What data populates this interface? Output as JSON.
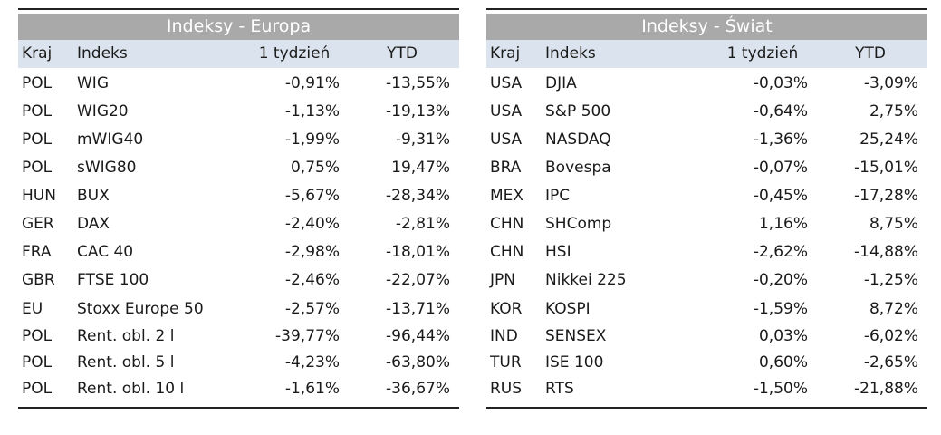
{
  "europa": {
    "title": "Indeksy - Europa",
    "headers": {
      "country": "Kraj",
      "index": "Indeks",
      "week": "1 tydzień",
      "ytd": "YTD"
    },
    "rows": [
      {
        "country": "POL",
        "index": "WIG",
        "week": "-0,91%",
        "ytd": "-13,55%"
      },
      {
        "country": "POL",
        "index": "WIG20",
        "week": "-1,13%",
        "ytd": "-19,13%"
      },
      {
        "country": "POL",
        "index": "mWIG40",
        "week": "-1,99%",
        "ytd": "-9,31%"
      },
      {
        "country": "POL",
        "index": "sWIG80",
        "week": "0,75%",
        "ytd": "19,47%"
      },
      {
        "country": "HUN",
        "index": "BUX",
        "week": "-5,67%",
        "ytd": "-28,34%"
      },
      {
        "country": "GER",
        "index": "DAX",
        "week": "-2,40%",
        "ytd": "-2,81%"
      },
      {
        "country": "FRA",
        "index": "CAC 40",
        "week": "-2,98%",
        "ytd": "-18,01%"
      },
      {
        "country": "GBR",
        "index": "FTSE 100",
        "week": "-2,46%",
        "ytd": "-22,07%"
      },
      {
        "country": "EU",
        "index": "Stoxx Europe 50",
        "week": "-2,57%",
        "ytd": "-13,71%"
      },
      {
        "country": "POL",
        "index": "Rent. obl. 2 l",
        "week": "-39,77%",
        "ytd": "-96,44%"
      },
      {
        "country": "POL",
        "index": "Rent. obl. 5 l",
        "week": "-4,23%",
        "ytd": "-63,80%"
      },
      {
        "country": "POL",
        "index": "Rent. obl. 10 l",
        "week": "-1,61%",
        "ytd": "-36,67%"
      }
    ]
  },
  "swiat": {
    "title": "Indeksy - Świat",
    "headers": {
      "country": "Kraj",
      "index": "Indeks",
      "week": "1 tydzień",
      "ytd": "YTD"
    },
    "rows": [
      {
        "country": "USA",
        "index": "DJIA",
        "week": "-0,03%",
        "ytd": "-3,09%"
      },
      {
        "country": "USA",
        "index": "S&P 500",
        "week": "-0,64%",
        "ytd": "2,75%"
      },
      {
        "country": "USA",
        "index": "NASDAQ",
        "week": "-1,36%",
        "ytd": "25,24%"
      },
      {
        "country": "BRA",
        "index": "Bovespa",
        "week": "-0,07%",
        "ytd": "-15,01%"
      },
      {
        "country": "MEX",
        "index": "IPC",
        "week": "-0,45%",
        "ytd": "-17,28%"
      },
      {
        "country": "CHN",
        "index": "SHComp",
        "week": "1,16%",
        "ytd": "8,75%"
      },
      {
        "country": "CHN",
        "index": "HSI",
        "week": "-2,62%",
        "ytd": "-14,88%"
      },
      {
        "country": "JPN",
        "index": "Nikkei 225",
        "week": "-0,20%",
        "ytd": "-1,25%"
      },
      {
        "country": "KOR",
        "index": "KOSPI",
        "week": "-1,59%",
        "ytd": "8,72%"
      },
      {
        "country": "IND",
        "index": "SENSEX",
        "week": "0,03%",
        "ytd": "-6,02%"
      },
      {
        "country": "TUR",
        "index": "ISE 100",
        "week": "0,60%",
        "ytd": "-2,65%"
      },
      {
        "country": "RUS",
        "index": "RTS",
        "week": "-1,50%",
        "ytd": "-21,88%"
      }
    ]
  }
}
